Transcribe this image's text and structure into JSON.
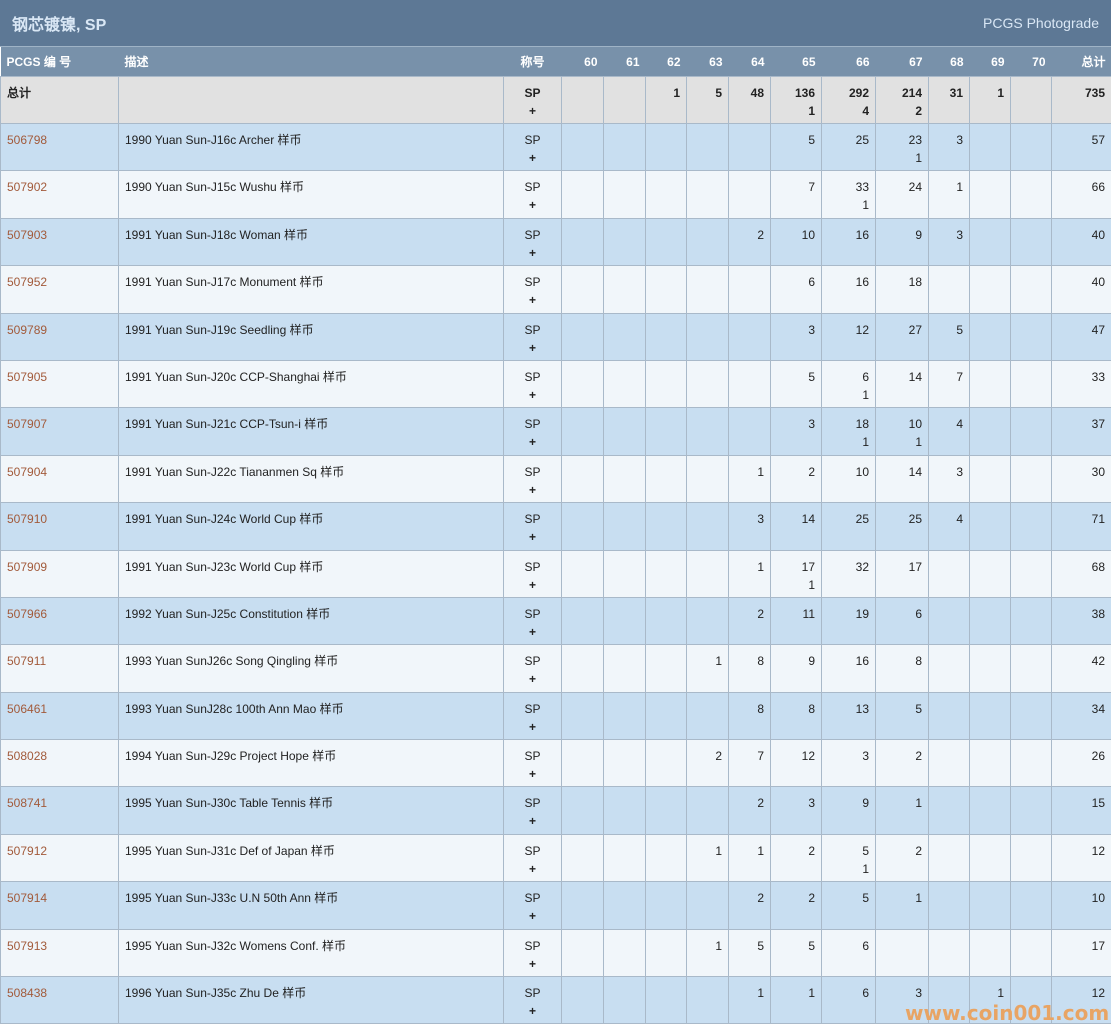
{
  "header": {
    "title": "钢芯镀镍, SP",
    "subtitle": "PCGS Photograde"
  },
  "columns": {
    "pcgs": "PCGS 编 号",
    "desc": "描述",
    "designation": "称号",
    "grades": [
      "60",
      "61",
      "62",
      "63",
      "64",
      "65",
      "66",
      "67",
      "68",
      "69",
      "70"
    ],
    "total": "总计"
  },
  "total_row": {
    "label": "总计",
    "designation": "SP",
    "plus_mark": "+",
    "counts": [
      "",
      "",
      "1",
      "5",
      "48",
      "136",
      "292",
      "214",
      "31",
      "1",
      ""
    ],
    "plus": [
      "",
      "",
      "",
      "",
      "",
      "1",
      "4",
      "2",
      "",
      "",
      ""
    ],
    "total": "735"
  },
  "rows": [
    {
      "pcgs": "506798",
      "desc": "1990 Yuan Sun-J16c Archer 样币",
      "designation": "SP",
      "plus_mark": "+",
      "counts": [
        "",
        "",
        "",
        "",
        "",
        "5",
        "25",
        "23",
        "3",
        "",
        ""
      ],
      "plus": [
        "",
        "",
        "",
        "",
        "",
        "",
        "",
        "1",
        "",
        "",
        ""
      ],
      "total": "57"
    },
    {
      "pcgs": "507902",
      "desc": "1990 Yuan Sun-J15c Wushu 样币",
      "designation": "SP",
      "plus_mark": "+",
      "counts": [
        "",
        "",
        "",
        "",
        "",
        "7",
        "33",
        "24",
        "1",
        "",
        ""
      ],
      "plus": [
        "",
        "",
        "",
        "",
        "",
        "",
        "1",
        "",
        "",
        "",
        ""
      ],
      "total": "66"
    },
    {
      "pcgs": "507903",
      "desc": "1991 Yuan Sun-J18c Woman 样币",
      "designation": "SP",
      "plus_mark": "+",
      "counts": [
        "",
        "",
        "",
        "",
        "2",
        "10",
        "16",
        "9",
        "3",
        "",
        ""
      ],
      "plus": [
        "",
        "",
        "",
        "",
        "",
        "",
        "",
        "",
        "",
        "",
        ""
      ],
      "total": "40"
    },
    {
      "pcgs": "507952",
      "desc": "1991 Yuan Sun-J17c Monument 样币",
      "designation": "SP",
      "plus_mark": "+",
      "counts": [
        "",
        "",
        "",
        "",
        "",
        "6",
        "16",
        "18",
        "",
        "",
        ""
      ],
      "plus": [
        "",
        "",
        "",
        "",
        "",
        "",
        "",
        "",
        "",
        "",
        ""
      ],
      "total": "40"
    },
    {
      "pcgs": "509789",
      "desc": "1991 Yuan Sun-J19c Seedling 样币",
      "designation": "SP",
      "plus_mark": "+",
      "counts": [
        "",
        "",
        "",
        "",
        "",
        "3",
        "12",
        "27",
        "5",
        "",
        ""
      ],
      "plus": [
        "",
        "",
        "",
        "",
        "",
        "",
        "",
        "",
        "",
        "",
        ""
      ],
      "total": "47"
    },
    {
      "pcgs": "507905",
      "desc": "1991 Yuan Sun-J20c CCP-Shanghai 样币",
      "designation": "SP",
      "plus_mark": "+",
      "counts": [
        "",
        "",
        "",
        "",
        "",
        "5",
        "6",
        "14",
        "7",
        "",
        ""
      ],
      "plus": [
        "",
        "",
        "",
        "",
        "",
        "",
        "1",
        "",
        "",
        "",
        ""
      ],
      "total": "33"
    },
    {
      "pcgs": "507907",
      "desc": "1991 Yuan Sun-J21c CCP-Tsun-i 样币",
      "designation": "SP",
      "plus_mark": "+",
      "counts": [
        "",
        "",
        "",
        "",
        "",
        "3",
        "18",
        "10",
        "4",
        "",
        ""
      ],
      "plus": [
        "",
        "",
        "",
        "",
        "",
        "",
        "1",
        "1",
        "",
        "",
        ""
      ],
      "total": "37"
    },
    {
      "pcgs": "507904",
      "desc": "1991 Yuan Sun-J22c Tiananmen Sq 样币",
      "designation": "SP",
      "plus_mark": "+",
      "counts": [
        "",
        "",
        "",
        "",
        "1",
        "2",
        "10",
        "14",
        "3",
        "",
        ""
      ],
      "plus": [
        "",
        "",
        "",
        "",
        "",
        "",
        "",
        "",
        "",
        "",
        ""
      ],
      "total": "30"
    },
    {
      "pcgs": "507910",
      "desc": "1991 Yuan Sun-J24c World Cup 样币",
      "designation": "SP",
      "plus_mark": "+",
      "counts": [
        "",
        "",
        "",
        "",
        "3",
        "14",
        "25",
        "25",
        "4",
        "",
        ""
      ],
      "plus": [
        "",
        "",
        "",
        "",
        "",
        "",
        "",
        "",
        "",
        "",
        ""
      ],
      "total": "71"
    },
    {
      "pcgs": "507909",
      "desc": "1991 Yuan Sun-J23c World Cup 样币",
      "designation": "SP",
      "plus_mark": "+",
      "counts": [
        "",
        "",
        "",
        "",
        "1",
        "17",
        "32",
        "17",
        "",
        "",
        ""
      ],
      "plus": [
        "",
        "",
        "",
        "",
        "",
        "1",
        "",
        "",
        "",
        "",
        ""
      ],
      "total": "68"
    },
    {
      "pcgs": "507966",
      "desc": "1992 Yuan Sun-J25c Constitution 样币",
      "designation": "SP",
      "plus_mark": "+",
      "counts": [
        "",
        "",
        "",
        "",
        "2",
        "11",
        "19",
        "6",
        "",
        "",
        ""
      ],
      "plus": [
        "",
        "",
        "",
        "",
        "",
        "",
        "",
        "",
        "",
        "",
        ""
      ],
      "total": "38"
    },
    {
      "pcgs": "507911",
      "desc": "1993 Yuan SunJ26c Song Qingling 样币",
      "designation": "SP",
      "plus_mark": "+",
      "counts": [
        "",
        "",
        "",
        "1",
        "8",
        "9",
        "16",
        "8",
        "",
        "",
        ""
      ],
      "plus": [
        "",
        "",
        "",
        "",
        "",
        "",
        "",
        "",
        "",
        "",
        ""
      ],
      "total": "42"
    },
    {
      "pcgs": "506461",
      "desc": "1993 Yuan SunJ28c 100th Ann Mao 样币",
      "designation": "SP",
      "plus_mark": "+",
      "counts": [
        "",
        "",
        "",
        "",
        "8",
        "8",
        "13",
        "5",
        "",
        "",
        ""
      ],
      "plus": [
        "",
        "",
        "",
        "",
        "",
        "",
        "",
        "",
        "",
        "",
        ""
      ],
      "total": "34"
    },
    {
      "pcgs": "508028",
      "desc": "1994 Yuan Sun-J29c Project Hope 样币",
      "designation": "SP",
      "plus_mark": "+",
      "counts": [
        "",
        "",
        "",
        "2",
        "7",
        "12",
        "3",
        "2",
        "",
        "",
        ""
      ],
      "plus": [
        "",
        "",
        "",
        "",
        "",
        "",
        "",
        "",
        "",
        "",
        ""
      ],
      "total": "26"
    },
    {
      "pcgs": "508741",
      "desc": "1995 Yuan Sun-J30c Table Tennis 样币",
      "designation": "SP",
      "plus_mark": "+",
      "counts": [
        "",
        "",
        "",
        "",
        "2",
        "3",
        "9",
        "1",
        "",
        "",
        ""
      ],
      "plus": [
        "",
        "",
        "",
        "",
        "",
        "",
        "",
        "",
        "",
        "",
        ""
      ],
      "total": "15"
    },
    {
      "pcgs": "507912",
      "desc": "1995 Yuan Sun-J31c Def of Japan 样币",
      "designation": "SP",
      "plus_mark": "+",
      "counts": [
        "",
        "",
        "",
        "1",
        "1",
        "2",
        "5",
        "2",
        "",
        "",
        ""
      ],
      "plus": [
        "",
        "",
        "",
        "",
        "",
        "",
        "1",
        "",
        "",
        "",
        ""
      ],
      "total": "12"
    },
    {
      "pcgs": "507914",
      "desc": "1995 Yuan Sun-J33c U.N 50th Ann 样币",
      "designation": "SP",
      "plus_mark": "+",
      "counts": [
        "",
        "",
        "",
        "",
        "2",
        "2",
        "5",
        "1",
        "",
        "",
        ""
      ],
      "plus": [
        "",
        "",
        "",
        "",
        "",
        "",
        "",
        "",
        "",
        "",
        ""
      ],
      "total": "10"
    },
    {
      "pcgs": "507913",
      "desc": "1995 Yuan Sun-J32c Womens Conf. 样币",
      "designation": "SP",
      "plus_mark": "+",
      "counts": [
        "",
        "",
        "",
        "1",
        "5",
        "5",
        "6",
        "",
        "",
        "",
        ""
      ],
      "plus": [
        "",
        "",
        "",
        "",
        "",
        "",
        "",
        "",
        "",
        "",
        ""
      ],
      "total": "17"
    },
    {
      "pcgs": "508438",
      "desc": "1996 Yuan Sun-J35c Zhu De 样币",
      "designation": "SP",
      "plus_mark": "+",
      "counts": [
        "",
        "",
        "",
        "",
        "1",
        "1",
        "6",
        "3",
        "",
        "1",
        ""
      ],
      "plus": [
        "",
        "",
        "",
        "",
        "",
        "",
        "",
        "",
        "",
        "",
        ""
      ],
      "total": "12"
    }
  ],
  "watermark": "www.coin001.com",
  "colors": {
    "title_bar": "#5d7895",
    "header": "#7891aa",
    "total_row": "#e1e1e1",
    "row_odd": "#c8def1",
    "row_even": "#f1f6fa",
    "link": "#a25a3a"
  }
}
